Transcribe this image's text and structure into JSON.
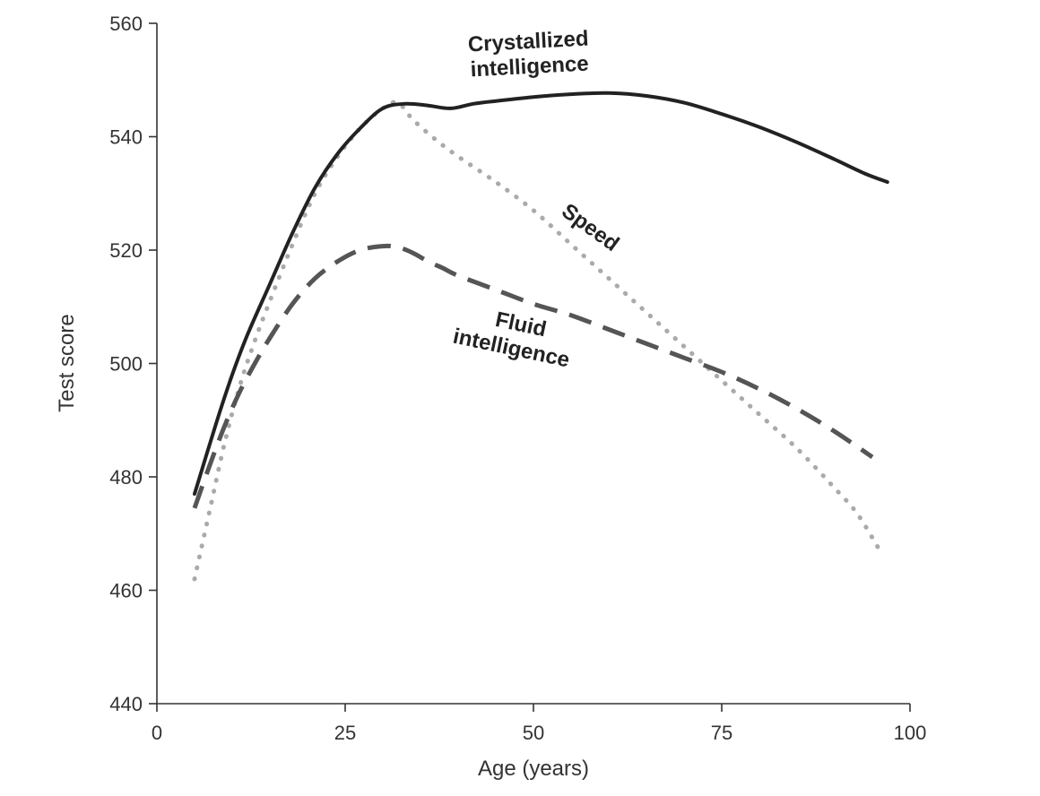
{
  "chart_data": {
    "type": "line",
    "title": "",
    "xlabel": "Age (years)",
    "ylabel": "Test score",
    "xlim": [
      0,
      100
    ],
    "ylim": [
      440,
      560
    ],
    "xticks": [
      0,
      25,
      50,
      75,
      100
    ],
    "yticks": [
      440,
      460,
      480,
      500,
      520,
      540,
      560
    ],
    "grid": false,
    "legend": "none (labels placed directly on curves)",
    "series": [
      {
        "name": "Crystallized intelligence",
        "label_lines": [
          "Crystallized",
          "intelligence"
        ],
        "style": "solid",
        "color": "#222222",
        "x": [
          5,
          8,
          10,
          12,
          15,
          18,
          21,
          24,
          27,
          30,
          33,
          36,
          39,
          42,
          45,
          50,
          55,
          60,
          65,
          70,
          75,
          80,
          85,
          90,
          94,
          97
        ],
        "y": [
          477,
          490,
          498,
          505,
          514,
          523,
          531,
          537,
          541.5,
          545,
          545.8,
          545.5,
          545,
          545.8,
          546.3,
          547,
          547.5,
          547.7,
          547.2,
          546,
          544,
          541.7,
          539,
          536,
          533.5,
          532
        ]
      },
      {
        "name": "Speed",
        "label_lines": [
          "Speed"
        ],
        "style": "dotted",
        "color": "#aaaaaa",
        "x": [
          5,
          7,
          9,
          11,
          13,
          15,
          18,
          21,
          24,
          27,
          30,
          32,
          34,
          37,
          40,
          45,
          50,
          55,
          60,
          65,
          70,
          75,
          80,
          85,
          90,
          93,
          96
        ],
        "y": [
          462,
          474,
          486,
          496,
          504,
          511,
          521,
          530,
          536.5,
          541.5,
          545,
          546,
          543,
          539.5,
          536.5,
          532,
          527,
          521,
          515,
          509,
          503,
          497,
          491,
          485,
          478,
          473.5,
          467
        ]
      },
      {
        "name": "Fluid intelligence",
        "label_lines": [
          "Fluid",
          "intelligence"
        ],
        "style": "dashed",
        "color": "#555555",
        "x": [
          5,
          7,
          9,
          11,
          13,
          15,
          18,
          21,
          24,
          27,
          30,
          32,
          34,
          36,
          38,
          40,
          45,
          50,
          55,
          60,
          65,
          70,
          75,
          80,
          85,
          90,
          95
        ],
        "y": [
          474.5,
          482,
          489,
          495,
          500,
          504.5,
          510.5,
          515,
          518,
          520,
          520.7,
          520.5,
          519.5,
          518,
          516.8,
          515.5,
          513,
          510.5,
          508.5,
          506,
          503.5,
          501,
          498.5,
          495.5,
          492,
          488,
          483.5
        ]
      }
    ]
  }
}
